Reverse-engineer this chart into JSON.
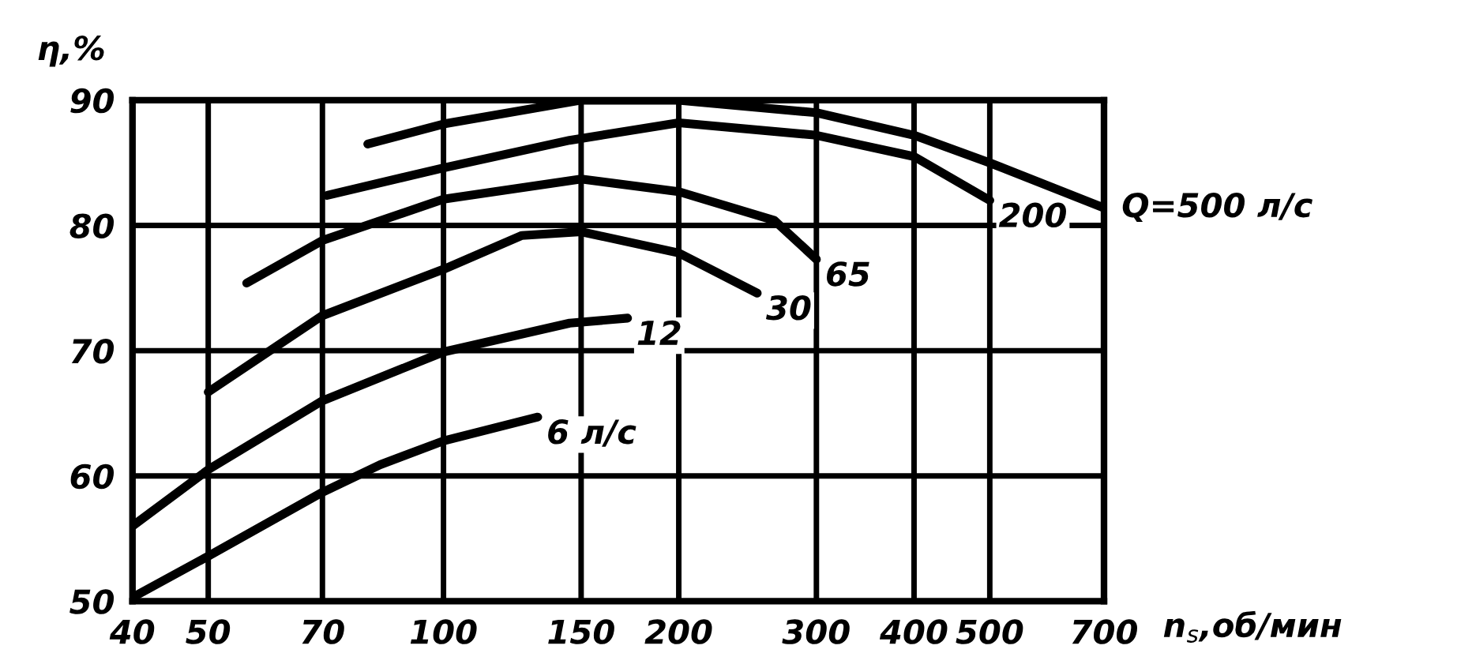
{
  "chart_data": {
    "type": "line",
    "xlabel": "n$_{s}$,об/мин",
    "ylabel": "η,%",
    "log": "x",
    "xlim": [
      40,
      700
    ],
    "xticks": [
      40,
      50,
      70,
      100,
      150,
      200,
      300,
      400,
      500,
      700
    ],
    "ylim": [
      50,
      90
    ],
    "yticks": [
      50,
      60,
      70,
      80,
      90
    ],
    "grid": true,
    "line_style": "solid",
    "legend": false,
    "series": [
      {
        "name": "6 л/с",
        "color": "#000000",
        "x": [
          40,
          50,
          70,
          83,
          100,
          132
        ],
        "values": [
          50.3,
          53.6,
          58.7,
          60.9,
          62.8,
          64.7
        ]
      },
      {
        "name": "12",
        "color": "#000000",
        "x": [
          40,
          50,
          70,
          100,
          145,
          172
        ],
        "values": [
          56,
          60.5,
          66,
          69.9,
          72.2,
          72.6
        ]
      },
      {
        "name": "30",
        "color": "#000000",
        "x": [
          50,
          70,
          100,
          126,
          150,
          200,
          252
        ],
        "values": [
          66.7,
          72.8,
          76.5,
          79.2,
          79.5,
          77.8,
          74.6
        ]
      },
      {
        "name": "65",
        "color": "#000000",
        "x": [
          56,
          70,
          100,
          150,
          200,
          265,
          300
        ],
        "values": [
          75.4,
          78.8,
          82.1,
          83.7,
          82.7,
          80.4,
          77.3
        ]
      },
      {
        "name": "200",
        "color": "#000000",
        "x": [
          71,
          100,
          145,
          200,
          300,
          400,
          500
        ],
        "values": [
          82.4,
          84.6,
          86.8,
          88.2,
          87.2,
          85.5,
          82
        ]
      },
      {
        "name": "Q=500 л/с",
        "color": "#000000",
        "x": [
          80,
          100,
          150,
          200,
          300,
          400,
          500,
          700
        ],
        "values": [
          86.5,
          88.1,
          90,
          90,
          89,
          87.2,
          85,
          81.4
        ]
      }
    ]
  }
}
